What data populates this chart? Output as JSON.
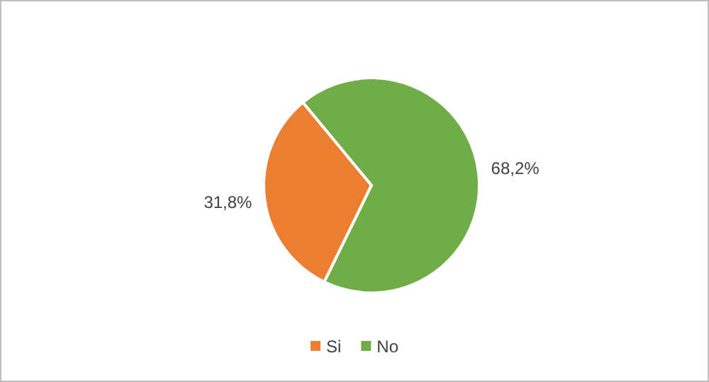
{
  "chart_data": {
    "type": "pie",
    "categories": [
      "Si",
      "No"
    ],
    "values": [
      31.8,
      68.2
    ],
    "colors": [
      "#ed7d31",
      "#70ad47"
    ],
    "value_labels": [
      "31,8%",
      "68,2%"
    ],
    "legend": "bottom"
  }
}
